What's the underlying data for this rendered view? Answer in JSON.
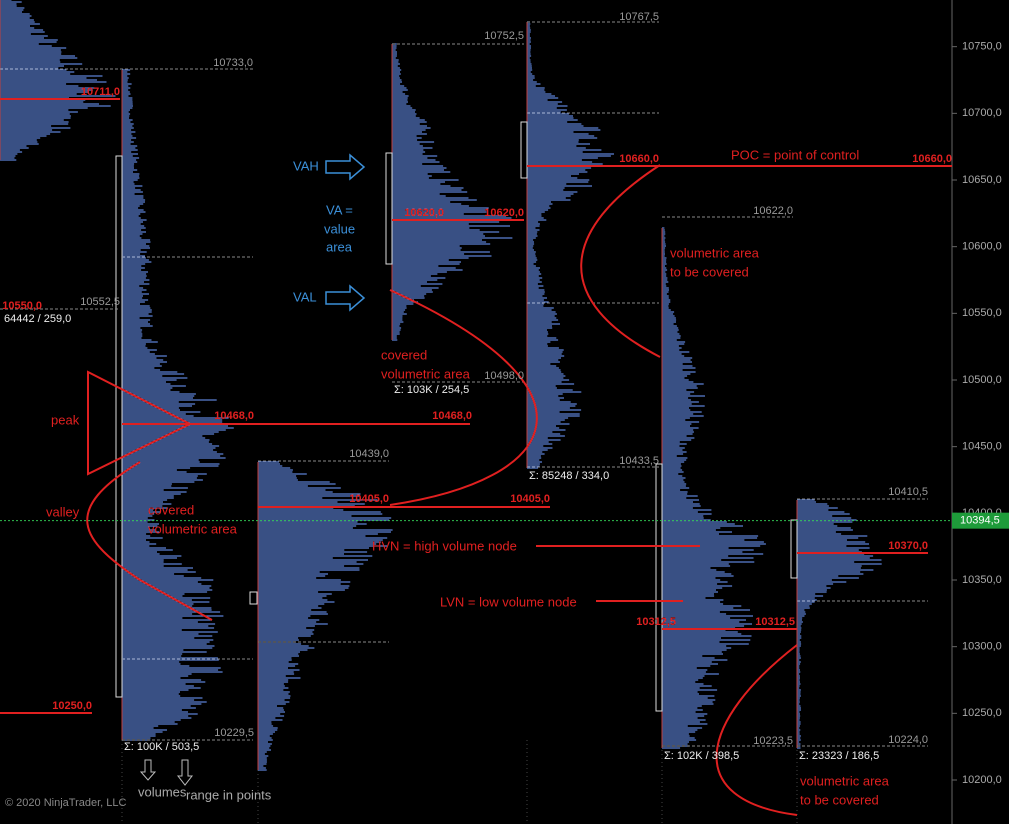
{
  "chart_data": {
    "type": "volume-profile",
    "ylim": [
      10167,
      10785
    ],
    "yticks": [
      {
        "value": 10200,
        "label": "10200,0"
      },
      {
        "value": 10250,
        "label": "10250,0"
      },
      {
        "value": 10300,
        "label": "10300,0"
      },
      {
        "value": 10350,
        "label": "10350,0"
      },
      {
        "value": 10400,
        "label": "10400,0"
      },
      {
        "value": 10450,
        "label": "10450,0"
      },
      {
        "value": 10500,
        "label": "10500,0"
      },
      {
        "value": 10550,
        "label": "10550,0"
      },
      {
        "value": 10600,
        "label": "10600,0"
      },
      {
        "value": 10650,
        "label": "10650,0"
      },
      {
        "value": 10700,
        "label": "10700,0"
      },
      {
        "value": 10750,
        "label": "10750,0"
      }
    ],
    "current_price": {
      "value": 10394.5,
      "label": "10394,5"
    },
    "price_labels": [
      "10733,0",
      "10711,0",
      "10552,5",
      "10550,0",
      "64442 / 259,0",
      "10468,0",
      "10468,0",
      "10250,0",
      "10439,0",
      "10405,0",
      "10405,0",
      "10229,5",
      "Σ: 100K / 503,5",
      "10752,5",
      "10620,0",
      "10620,0",
      "10498,0",
      "Σ: 103K / 254,5",
      "10767,5",
      "10660,0",
      "10433,5",
      "Σ: 85248 / 334,0",
      "10622,0",
      "10312,5",
      "10312,5",
      "10223,5",
      "Σ: 102K / 398,5",
      "10410,5",
      "10370,0",
      "10224,0",
      "Σ: 23323 / 186,5",
      "10660,0"
    ],
    "annotations": [
      "VAH",
      "VA =",
      "value",
      "area",
      "VAL",
      "covered",
      "volumetric area",
      "peak",
      "valley",
      "covered",
      "volumetric area",
      "POC = point of control",
      "volumetric area",
      "to be covered",
      "HVN = high volume node",
      "LVN = low volume node",
      "volumes",
      "range in points",
      "volumetric area",
      "to be covered"
    ],
    "copyright": "© 2020 NinjaTrader, LLC"
  }
}
